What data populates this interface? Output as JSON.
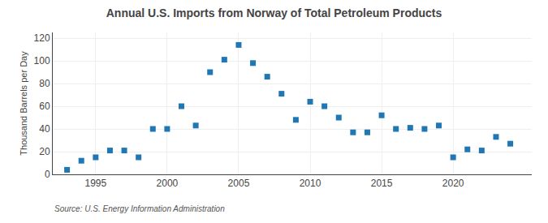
{
  "chart_data": {
    "type": "scatter",
    "title": "Annual U.S. Imports from Norway of Total Petroleum Products",
    "ylabel": "Thousand Barrels per Day",
    "annotations": [
      "Source: U.S. Energy Information Administration"
    ],
    "x": [
      1993,
      1994,
      1995,
      1996,
      1997,
      1998,
      1999,
      2000,
      2001,
      2002,
      2003,
      2004,
      2005,
      2006,
      2007,
      2008,
      2009,
      2010,
      2011,
      2012,
      2013,
      2014,
      2015,
      2016,
      2017,
      2018,
      2019,
      2020,
      2021,
      2022,
      2023,
      2024
    ],
    "values": [
      4,
      12,
      15,
      21,
      21,
      15,
      40,
      40,
      60,
      43,
      90,
      101,
      114,
      98,
      86,
      71,
      48,
      64,
      60,
      50,
      37,
      37,
      52,
      40,
      41,
      40,
      43,
      15,
      22,
      21,
      33,
      27
    ],
    "xlim": [
      1992,
      2025.5
    ],
    "xticks": [
      1995,
      2000,
      2005,
      2010,
      2015,
      2020
    ],
    "ylim": [
      0,
      125
    ],
    "yticks": [
      0,
      20,
      40,
      60,
      80,
      100,
      120
    ],
    "marker": "square",
    "grid": true
  }
}
